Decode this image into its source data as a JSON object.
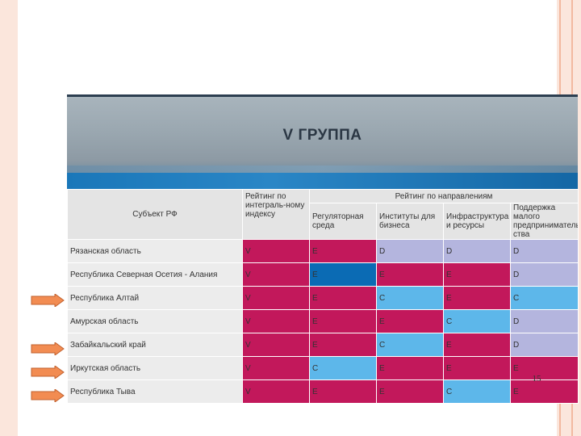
{
  "slide": {
    "title": "V ГРУППА",
    "page_number": "15"
  },
  "table": {
    "header": {
      "subject": "Субъект РФ",
      "integral": "Рейтинг по интеграль-ному индексу",
      "directions": "Рейтинг по направлениям",
      "regulatory": "Регуляторная среда",
      "institutes": "Институты для бизнеса",
      "infrastructure": "Инфраструктура и ресурсы",
      "support": "Поддержка малого предприниматель-ства"
    },
    "rows": [
      {
        "name": "Рязанская область",
        "integral": "V",
        "regulatory": "E",
        "institutes": "D",
        "infrastructure": "D",
        "support": "D"
      },
      {
        "name": "Республика Северная Осетия - Алания",
        "integral": "V",
        "regulatory": "E",
        "institutes": "E",
        "infrastructure": "E",
        "support": "D"
      },
      {
        "name": "Республика Алтай",
        "integral": "V",
        "regulatory": "E",
        "institutes": "C",
        "infrastructure": "E",
        "support": "C"
      },
      {
        "name": "Амурская область",
        "integral": "V",
        "regulatory": "E",
        "institutes": "E",
        "infrastructure": "C",
        "support": "D"
      },
      {
        "name": "Забайкальский край",
        "integral": "V",
        "regulatory": "E",
        "institutes": "C",
        "infrastructure": "E",
        "support": "D"
      },
      {
        "name": "Иркутская область",
        "integral": "V",
        "regulatory": "C",
        "institutes": "E",
        "infrastructure": "E",
        "support": "E"
      },
      {
        "name": "Республика Тыва",
        "integral": "V",
        "regulatory": "E",
        "institutes": "E",
        "infrastructure": "C",
        "support": "E"
      }
    ]
  },
  "colors": {
    "rating_V_E": "#c2185b",
    "rating_E_highlight": "#0b6bb4",
    "rating_C": "#5db7ea",
    "rating_D": "#b4b5de",
    "arrow": "#f28c52"
  },
  "arrows": {
    "marked_rows": [
      "Республика Алтай",
      "Забайкальский край",
      "Иркутская область",
      "Республика Тыва"
    ]
  }
}
